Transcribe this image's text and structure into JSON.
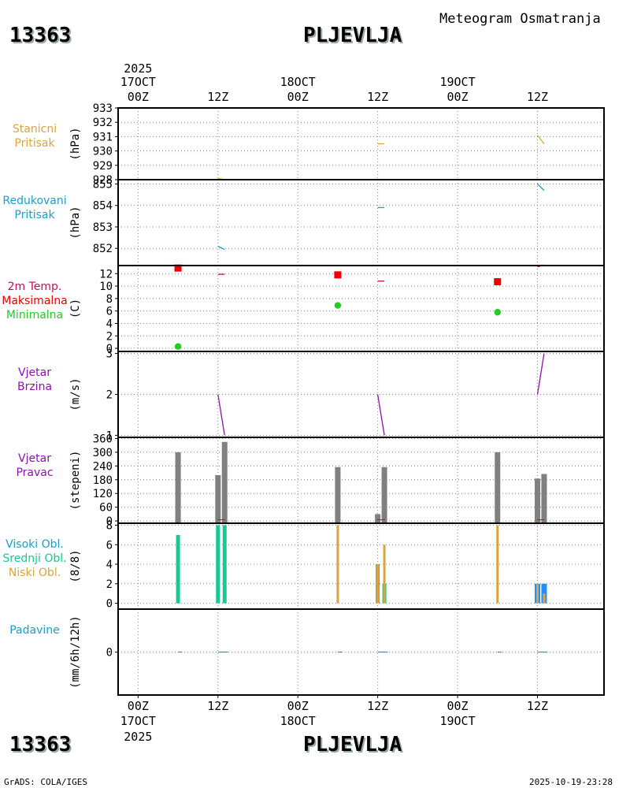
{
  "header": {
    "station_id": "13363",
    "station_name": "PLJEVLJA",
    "title": "Meteogram Osmatranja",
    "footer_left": "GrADS: COLA/IGES",
    "footer_right": "2025-10-19-23:28"
  },
  "colors": {
    "orange": "#e0a33a",
    "cyan": "#1aa0c8",
    "crimson": "#c0105a",
    "red": "#ee0000",
    "green": "#22cc22",
    "purple": "#9010b0",
    "gray": "#808080",
    "teal": "#19c98f",
    "sky": "#1e90ff"
  },
  "time_axis": {
    "year": "2025",
    "top_labels": [
      {
        "hour": 0,
        "time": "00Z",
        "date": "17OCT"
      },
      {
        "hour": 12,
        "time": "12Z",
        "date": ""
      },
      {
        "hour": 24,
        "time": "00Z",
        "date": "18OCT"
      },
      {
        "hour": 36,
        "time": "12Z",
        "date": ""
      },
      {
        "hour": 48,
        "time": "00Z",
        "date": "19OCT"
      },
      {
        "hour": 60,
        "time": "12Z",
        "date": ""
      }
    ],
    "range_hours": [
      -3,
      70
    ]
  },
  "chart_data": [
    {
      "id": "pressure",
      "type": "line",
      "label": [
        "Stanicni",
        "Pritisak"
      ],
      "label_color": "#e0a33a",
      "ylabel": "(hPa)",
      "ylim": [
        928,
        933
      ],
      "yticks": [
        928,
        929,
        930,
        931,
        932,
        933
      ],
      "series": [
        {
          "name": "Stanicni Pritisak",
          "color": "#e0a33a",
          "segments": [
            [
              [
                12,
                928.1
              ],
              [
                13,
                928.0
              ]
            ],
            [
              [
                36,
                930.5
              ],
              [
                37,
                930.5
              ]
            ],
            [
              [
                60,
                931.1
              ],
              [
                61,
                930.5
              ]
            ]
          ]
        }
      ]
    },
    {
      "id": "reduced",
      "type": "line",
      "label": [
        "Redukovani",
        "Pritisak"
      ],
      "label_color": "#1aa0c8",
      "ylabel": "(hPa)",
      "ylim": [
        851.2,
        855.2
      ],
      "yticks": [
        852,
        853,
        854,
        855
      ],
      "series": [
        {
          "name": "Redukovani Pritisak",
          "color": "#1aa0c8",
          "segments": [
            [
              [
                12,
                852.1
              ],
              [
                13,
                851.95
              ]
            ],
            [
              [
                36,
                853.9
              ],
              [
                37,
                853.9
              ]
            ],
            [
              [
                60,
                855.0
              ],
              [
                61,
                854.7
              ]
            ]
          ]
        }
      ]
    },
    {
      "id": "temp",
      "type": "line",
      "label": [
        "2m Temp.",
        "Maksimalna",
        "Minimalna"
      ],
      "label_colors": [
        "#c0105a",
        "#ee0000",
        "#22cc22"
      ],
      "ylabel": "(C)",
      "ylim": [
        -0.5,
        13.3
      ],
      "yticks": [
        0,
        2,
        4,
        6,
        8,
        10,
        12
      ],
      "series": [
        {
          "name": "2m Temp.",
          "color": "#c0105a",
          "segments": [
            [
              [
                12,
                11.9
              ],
              [
                13,
                11.9
              ]
            ],
            [
              [
                36,
                10.8
              ],
              [
                37,
                10.8
              ]
            ],
            [
              [
                60,
                13.1
              ],
              [
                61,
                13.4
              ]
            ]
          ]
        }
      ],
      "maxima": [
        {
          "x": 6,
          "y": 12.9
        },
        {
          "x": 30,
          "y": 11.8
        },
        {
          "x": 54,
          "y": 10.7
        }
      ],
      "minima": [
        {
          "x": 6,
          "y": 0.3
        },
        {
          "x": 30,
          "y": 6.9
        },
        {
          "x": 54,
          "y": 5.8
        }
      ]
    },
    {
      "id": "windspeed",
      "type": "line",
      "label": [
        "Vjetar",
        "Brzina"
      ],
      "label_color": "#9010b0",
      "ylabel": "(m/s)",
      "ylim": [
        0.95,
        3.05
      ],
      "yticks": [
        1,
        2,
        3
      ],
      "series": [
        {
          "name": "Vjetar Brzina",
          "color": "#9010b0",
          "segments": [
            [
              [
                12,
                2.0
              ],
              [
                13,
                1.0
              ]
            ],
            [
              [
                36,
                2.0
              ],
              [
                37,
                1.0
              ]
            ],
            [
              [
                60,
                2.0
              ],
              [
                61,
                3.0
              ]
            ]
          ]
        }
      ]
    },
    {
      "id": "winddir",
      "type": "bar",
      "label": [
        "Vjetar",
        "Pravac"
      ],
      "label_color": "#9010b0",
      "ylabel": "(stepeni)",
      "ylim": [
        -10,
        365
      ],
      "yticks": [
        0,
        60,
        120,
        180,
        240,
        300,
        360
      ],
      "bars": [
        {
          "x": 6,
          "value": 300
        },
        {
          "x": 12,
          "value": 200
        },
        {
          "x": 13,
          "value": 345
        },
        {
          "x": 30,
          "value": 235
        },
        {
          "x": 36,
          "value": 30
        },
        {
          "x": 37,
          "value": 235
        },
        {
          "x": 54,
          "value": 300
        },
        {
          "x": 60,
          "value": 185
        },
        {
          "x": 61,
          "value": 205
        }
      ],
      "red_marks": [
        {
          "x": 12.5,
          "value": 5
        },
        {
          "x": 36.5,
          "value": 5
        },
        {
          "x": 60.5,
          "value": 5
        }
      ]
    },
    {
      "id": "clouds",
      "type": "bar",
      "label": [
        "Visoki Obl.",
        "Srednji Obl.",
        "Niski Obl."
      ],
      "label_colors": [
        "#1aa0c8",
        "#19c98f",
        "#e0a33a"
      ],
      "ylabel": "(8/8)",
      "ylim": [
        -0.6,
        8.2
      ],
      "yticks": [
        0,
        2,
        4,
        6,
        8
      ],
      "series": [
        {
          "name": "Visoki Obl.",
          "color": "#1e90ff",
          "points": [
            {
              "x": 60,
              "value": 2
            },
            {
              "x": 61,
              "value": 2
            }
          ]
        },
        {
          "name": "Srednji Obl.",
          "color": "#19c98f",
          "points": [
            {
              "x": 6,
              "value": 7
            },
            {
              "x": 12,
              "value": 8
            },
            {
              "x": 13,
              "value": 8
            },
            {
              "x": 36,
              "value": 4
            },
            {
              "x": 37,
              "value": 2
            }
          ]
        },
        {
          "name": "Niski Obl.",
          "color": "#e0a33a",
          "points": [
            {
              "x": 30,
              "value": 8
            },
            {
              "x": 36,
              "value": 4
            },
            {
              "x": 37,
              "value": 6
            },
            {
              "x": 54,
              "value": 8
            },
            {
              "x": 60,
              "value": 2
            },
            {
              "x": 61,
              "value": 1
            }
          ]
        }
      ]
    },
    {
      "id": "precip",
      "type": "line",
      "label": [
        "Padavine"
      ],
      "label_color": "#1aa0c8",
      "ylabel": "(mm/6h/12h)",
      "ylim": [
        -1,
        1
      ],
      "yticks": [
        0
      ],
      "series": [
        {
          "name": "Padavine",
          "color": "#1aa0c8",
          "segments": [
            [
              [
                6,
                0
              ],
              [
                6.6,
                0
              ]
            ],
            [
              [
                12,
                0
              ],
              [
                13.5,
                0
              ]
            ],
            [
              [
                30,
                0
              ],
              [
                30.6,
                0
              ]
            ],
            [
              [
                36,
                0
              ],
              [
                37.5,
                0
              ]
            ],
            [
              [
                54,
                0
              ],
              [
                54.6,
                0
              ]
            ],
            [
              [
                60,
                0
              ],
              [
                61.5,
                0
              ]
            ]
          ]
        }
      ]
    }
  ]
}
